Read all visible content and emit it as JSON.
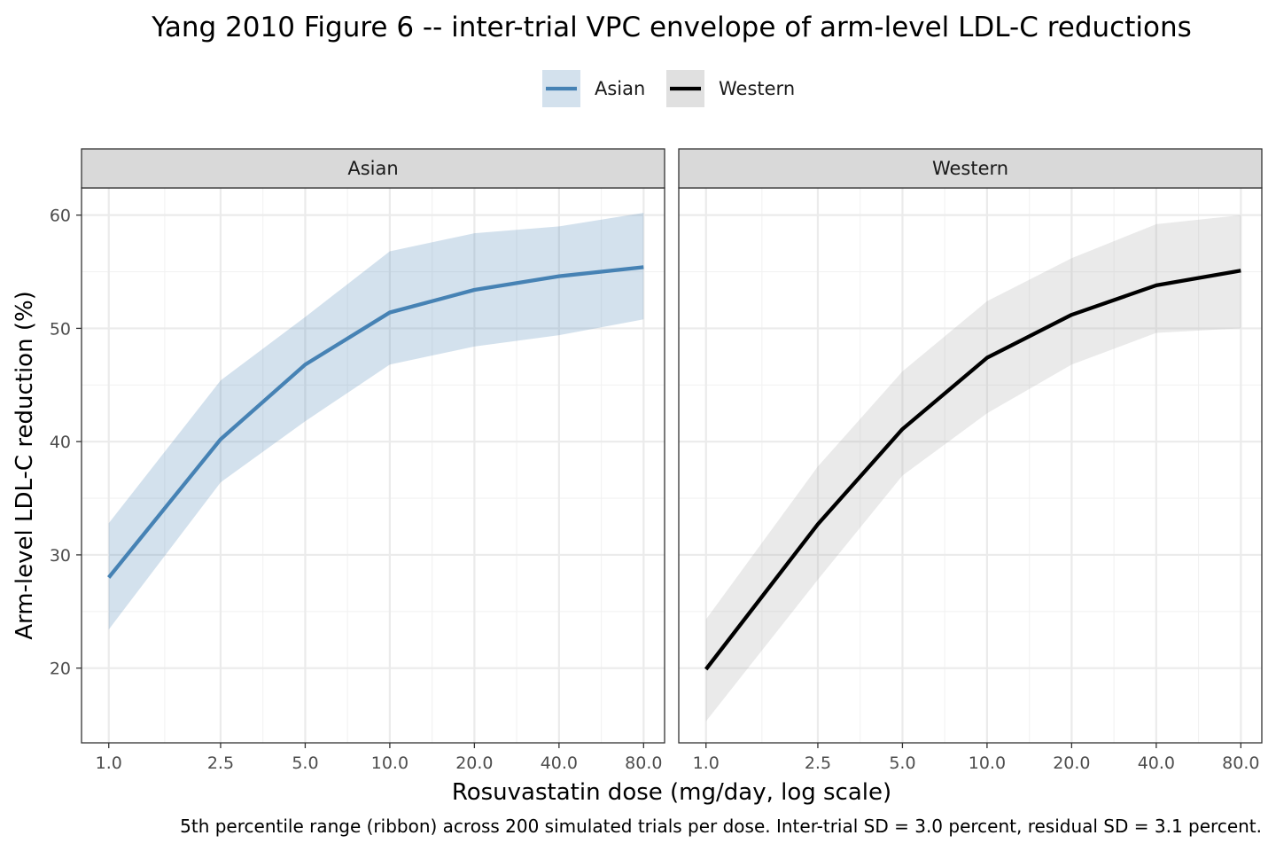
{
  "chart_data": {
    "type": "line",
    "title": "Yang 2010 Figure 6 -- inter-trial VPC envelope of arm-level LDL-C reductions",
    "xlabel": "Rosuvastatin dose (mg/day, log scale)",
    "ylabel": "Arm-level LDL-C reduction (%)",
    "caption": "5th percentile range (ribbon) across 200 simulated trials per dose. Inter-trial SD = 3.0 percent, residual SD = 3.1 percent.",
    "x_scale": "log",
    "x_ticks": [
      1,
      2.5,
      5,
      10,
      20,
      40,
      80
    ],
    "x_tick_labels": [
      "1.0",
      "2.5",
      "5.0",
      "10.0",
      "20.0",
      "40.0",
      "80.0"
    ],
    "y_ticks": [
      20,
      30,
      40,
      50,
      60
    ],
    "y_tick_labels": [
      "20",
      "30",
      "40",
      "50",
      "60"
    ],
    "ylim": [
      13.4,
      62.4
    ],
    "xlim": [
      0.8,
      95
    ],
    "grid": true,
    "legend": {
      "position": "top",
      "entries": [
        {
          "label": "Asian",
          "line_color": "#4682B4",
          "fill_color": "#4682B4"
        },
        {
          "label": "Western",
          "line_color": "#000000",
          "fill_color": "#A6A6A6"
        }
      ]
    },
    "panels": [
      {
        "strip": "Asian",
        "series": "Asian",
        "line_color": "#4682B4",
        "ribbon_color": "#4682B4",
        "x": [
          1,
          2.5,
          5,
          10,
          20,
          40,
          80
        ],
        "median": [
          28.0,
          40.2,
          46.8,
          51.4,
          53.4,
          54.6,
          55.4
        ],
        "lower": [
          23.4,
          36.4,
          41.8,
          46.8,
          48.4,
          49.4,
          50.8
        ],
        "upper": [
          32.8,
          45.4,
          51.0,
          56.8,
          58.4,
          59.0,
          60.2
        ]
      },
      {
        "strip": "Western",
        "series": "Western",
        "line_color": "#000000",
        "ribbon_color": "#A6A6A6",
        "x": [
          1,
          2.5,
          5,
          10,
          20,
          40,
          80
        ],
        "median": [
          19.9,
          32.7,
          41.1,
          47.4,
          51.2,
          53.8,
          55.1
        ],
        "lower": [
          15.3,
          27.8,
          37.0,
          42.5,
          46.8,
          49.6,
          50.0
        ],
        "upper": [
          24.3,
          37.8,
          46.2,
          52.4,
          56.2,
          59.2,
          60.0
        ]
      }
    ]
  }
}
